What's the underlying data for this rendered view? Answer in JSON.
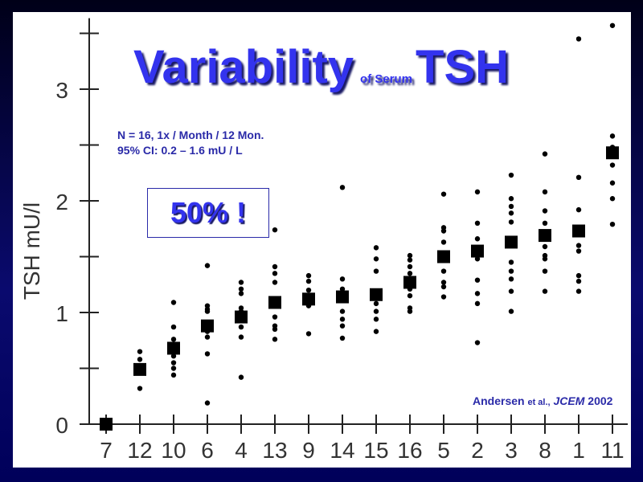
{
  "title": {
    "main": "Variability",
    "connector": "of Serum",
    "subject": "TSH"
  },
  "info": {
    "line1": "N = 16, 1x / Month / 12 Mon.",
    "line2": "95% CI: 0.2 – 1.6 mU / L"
  },
  "callout": "50% !",
  "citation": {
    "author": "Andersen",
    "etal": "et al.,",
    "journal": "JCEM",
    "year": "2002"
  },
  "colors": {
    "background": "#0a0a6e",
    "title": "#3333ee",
    "text": "#2a2aa8",
    "marks": "#000000"
  },
  "chart_data": {
    "type": "scatter",
    "ylabel": "TSH  mU/l",
    "xlabel": "",
    "ylim": [
      0,
      3.6
    ],
    "yticks": [
      0,
      1,
      2,
      3
    ],
    "grid": false,
    "categories": [
      "7",
      "12",
      "10",
      "6",
      "4",
      "13",
      "9",
      "14",
      "15",
      "16",
      "5",
      "2",
      "3",
      "8",
      "1",
      "11"
    ],
    "medians": [
      0,
      0.49,
      0.68,
      0.88,
      0.96,
      1.09,
      1.12,
      1.14,
      1.16,
      1.27,
      1.5,
      1.55,
      1.63,
      1.69,
      1.73,
      2.43
    ],
    "points": [
      [],
      [
        0.65,
        0.58,
        0.32
      ],
      [
        1.09,
        0.87,
        0.76,
        0.61,
        0.55,
        0.5,
        0.44
      ],
      [
        1.42,
        1.06,
        1.03,
        1.01,
        0.83,
        0.78,
        0.63,
        0.19
      ],
      [
        1.27,
        1.21,
        1.17,
        1.04,
        1.01,
        0.87,
        0.78,
        0.42
      ],
      [
        1.74,
        1.41,
        1.35,
        1.27,
        0.96,
        0.88,
        0.85,
        0.76
      ],
      [
        1.33,
        1.28,
        1.2,
        1.06,
        0.81
      ],
      [
        2.12,
        1.3,
        1.21,
        1.01,
        0.94,
        0.88,
        0.77
      ],
      [
        1.58,
        1.48,
        1.37,
        1.08,
        1.01,
        0.94,
        0.83
      ],
      [
        1.51,
        1.47,
        1.41,
        1.35,
        1.21,
        1.15,
        1.04,
        1.01
      ],
      [
        2.06,
        1.76,
        1.73,
        1.63,
        1.37,
        1.27,
        1.23,
        1.14
      ],
      [
        2.08,
        1.8,
        1.66,
        1.48,
        1.29,
        1.17,
        1.08,
        0.73
      ],
      [
        2.23,
        2.02,
        1.95,
        1.89,
        1.81,
        1.45,
        1.37,
        1.3,
        1.19,
        1.01
      ],
      [
        2.42,
        2.08,
        1.91,
        1.8,
        1.59,
        1.51,
        1.48,
        1.37,
        1.19
      ],
      [
        3.45,
        2.21,
        1.92,
        1.6,
        1.55,
        1.33,
        1.28,
        1.19
      ],
      [
        3.57,
        2.58,
        2.48,
        2.32,
        2.16,
        2.02,
        1.79
      ]
    ]
  }
}
